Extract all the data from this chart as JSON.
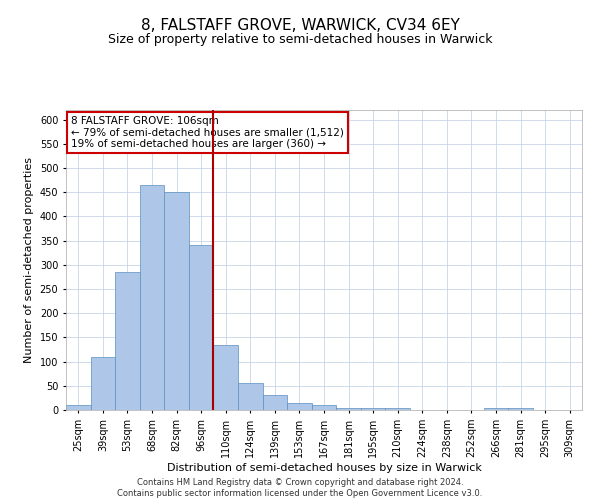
{
  "title": "8, FALSTAFF GROVE, WARWICK, CV34 6EY",
  "subtitle": "Size of property relative to semi-detached houses in Warwick",
  "xlabel": "Distribution of semi-detached houses by size in Warwick",
  "ylabel": "Number of semi-detached properties",
  "footer": "Contains HM Land Registry data © Crown copyright and database right 2024.\nContains public sector information licensed under the Open Government Licence v3.0.",
  "categories": [
    "25sqm",
    "39sqm",
    "53sqm",
    "68sqm",
    "82sqm",
    "96sqm",
    "110sqm",
    "124sqm",
    "139sqm",
    "153sqm",
    "167sqm",
    "181sqm",
    "195sqm",
    "210sqm",
    "224sqm",
    "238sqm",
    "252sqm",
    "266sqm",
    "281sqm",
    "295sqm",
    "309sqm"
  ],
  "values": [
    10,
    110,
    285,
    465,
    450,
    340,
    135,
    55,
    30,
    15,
    10,
    5,
    5,
    5,
    0,
    0,
    0,
    5,
    5,
    0,
    0
  ],
  "bar_color": "#aec6e8",
  "bar_edge_color": "#5a8fc0",
  "vline_color": "#aa0000",
  "annotation_text": "8 FALSTAFF GROVE: 106sqm\n← 79% of semi-detached houses are smaller (1,512)\n19% of semi-detached houses are larger (360) →",
  "annotation_box_color": "#ffffff",
  "annotation_box_edge": "#cc0000",
  "ylim": [
    0,
    620
  ],
  "yticks": [
    0,
    50,
    100,
    150,
    200,
    250,
    300,
    350,
    400,
    450,
    500,
    550,
    600
  ],
  "title_fontsize": 11,
  "subtitle_fontsize": 9,
  "axis_fontsize": 8,
  "tick_fontsize": 7,
  "bg_color": "#ffffff",
  "grid_color": "#c8d4e8"
}
